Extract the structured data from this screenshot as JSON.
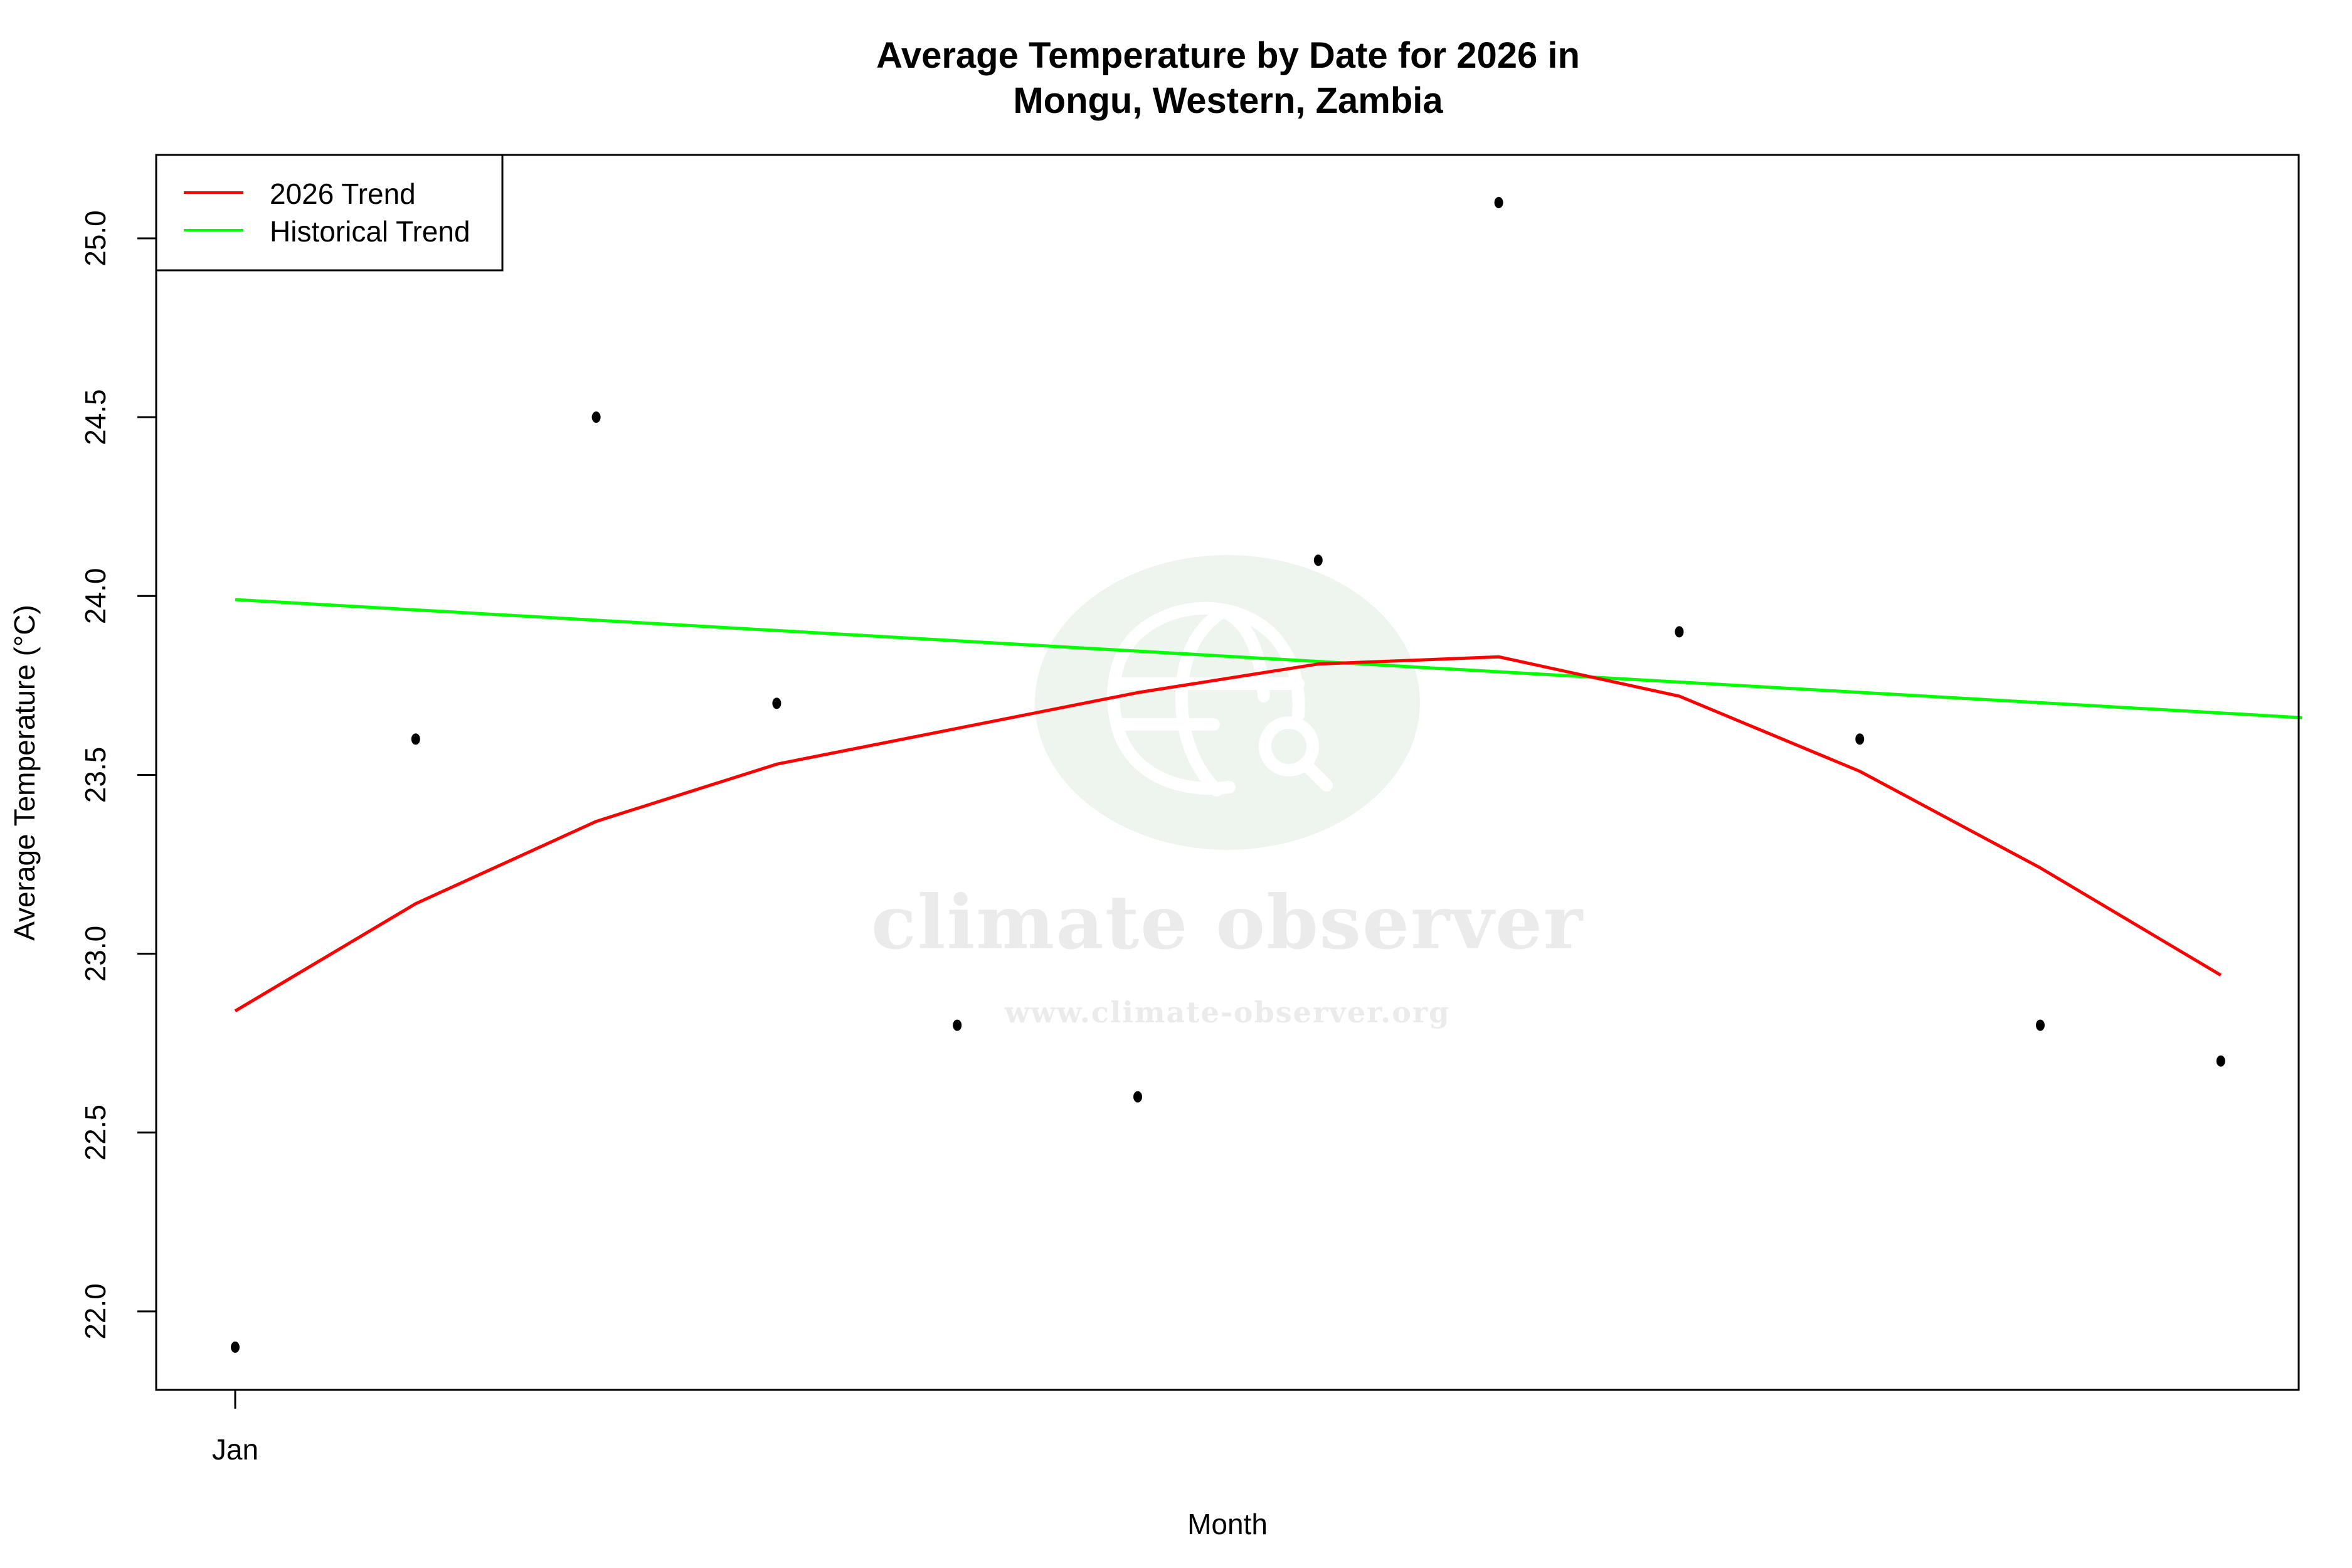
{
  "chart_data": {
    "type": "line",
    "title": "Average Temperature by Date for 2026 in",
    "subtitle": "Mongu, Western, Zambia",
    "xlabel": "Month",
    "ylabel": "Average Temperature (°C)",
    "x_tick_labels": [
      "Jan"
    ],
    "y_ticks": [
      22.0,
      22.5,
      23.0,
      23.5,
      24.0,
      24.5,
      25.0
    ],
    "y_tick_labels": [
      "22.0",
      "22.5",
      "23.0",
      "23.5",
      "24.0",
      "24.5",
      "25.0"
    ],
    "ylim": [
      21.78,
      25.23
    ],
    "grid": false,
    "legend_position": "top-left",
    "x": [
      1,
      2,
      3,
      4,
      5,
      6,
      7,
      8,
      9,
      10,
      11,
      12
    ],
    "series": [
      {
        "name": "Observed",
        "type": "scatter",
        "color": "#000000",
        "values": [
          21.9,
          23.6,
          24.5,
          23.7,
          22.8,
          22.6,
          24.1,
          25.1,
          23.9,
          23.6,
          22.8,
          22.7
        ]
      },
      {
        "name": "2026 Trend",
        "type": "line",
        "color": "#ff0000",
        "values": [
          22.84,
          23.14,
          23.37,
          23.53,
          23.63,
          23.73,
          23.81,
          23.83,
          23.72,
          23.51,
          23.24,
          22.94
        ]
      },
      {
        "name": "Historical Trend",
        "type": "line",
        "color": "#00ff00",
        "values": [
          23.99,
          23.96,
          23.94,
          23.91,
          23.88,
          23.86,
          23.83,
          23.8,
          23.77,
          23.74,
          23.72,
          23.69
        ],
        "x_end": 12.45,
        "value_end": 23.66
      }
    ]
  },
  "legend": {
    "items": [
      {
        "label": "2026 Trend",
        "color": "#ff0000"
      },
      {
        "label": "Historical Trend",
        "color": "#00ff00"
      }
    ]
  },
  "watermark": {
    "name": "climate observer",
    "url": "www.climate-observer.org",
    "icon": "globe-search-icon"
  }
}
